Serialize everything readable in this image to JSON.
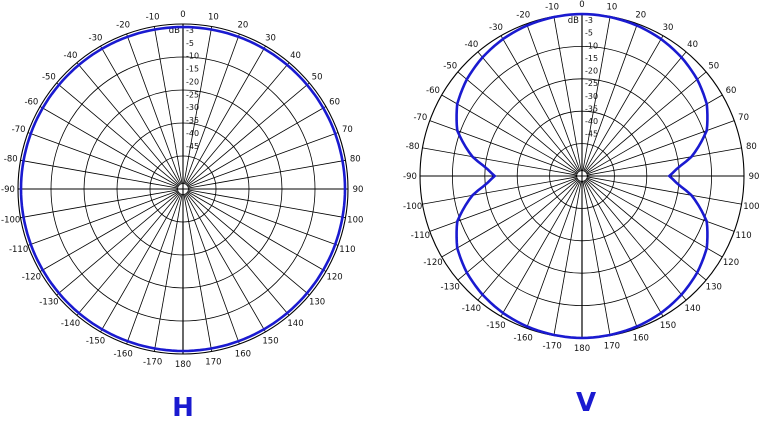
{
  "chart_data": [
    {
      "type": "polar",
      "caption": "H",
      "unit": "dB",
      "radial_levels_db": [
        -3,
        -5,
        -10,
        -15,
        -20,
        -25,
        -30,
        -35,
        -40,
        -45
      ],
      "angle_ticks_deg": [
        -170,
        -160,
        -150,
        -140,
        -130,
        -120,
        -110,
        -100,
        -90,
        -80,
        -70,
        -60,
        -50,
        -40,
        -30,
        -20,
        -10,
        0,
        10,
        20,
        30,
        40,
        50,
        60,
        70,
        80,
        90,
        100,
        110,
        120,
        130,
        140,
        150,
        160,
        170,
        180
      ],
      "pattern": {
        "angles_deg": [
          0,
          30,
          60,
          90,
          120,
          150,
          180,
          210,
          240,
          270,
          300,
          330
        ],
        "gain_db": [
          -1,
          -1,
          -1,
          -1,
          -1,
          -1,
          -1,
          -1,
          -1,
          -1,
          -1,
          -1
        ]
      }
    },
    {
      "type": "polar",
      "caption": "V",
      "unit": "dB",
      "radial_levels_db": [
        -3,
        -5,
        -10,
        -15,
        -20,
        -25,
        -30,
        -35,
        -40,
        -45
      ],
      "angle_ticks_deg": [
        -170,
        -160,
        -150,
        -140,
        -130,
        -120,
        -110,
        -100,
        -90,
        -80,
        -70,
        -60,
        -50,
        -40,
        -30,
        -20,
        -10,
        0,
        10,
        20,
        30,
        40,
        50,
        60,
        70,
        80,
        90,
        100,
        110,
        120,
        130,
        140,
        150,
        160,
        170,
        180
      ],
      "pattern": {
        "angles_deg": [
          0,
          10,
          20,
          30,
          40,
          50,
          60,
          70,
          80,
          85,
          90,
          95,
          100,
          110,
          120,
          130,
          140,
          150,
          160,
          170,
          180
        ],
        "gain_db": [
          0,
          -0.2,
          -0.6,
          -1.3,
          -2.4,
          -3.9,
          -6,
          -9.8,
          -17,
          -22,
          -25,
          -22,
          -17,
          -9.8,
          -6,
          -3.9,
          -2.4,
          -1.3,
          -0.6,
          -0.2,
          0
        ]
      }
    }
  ]
}
